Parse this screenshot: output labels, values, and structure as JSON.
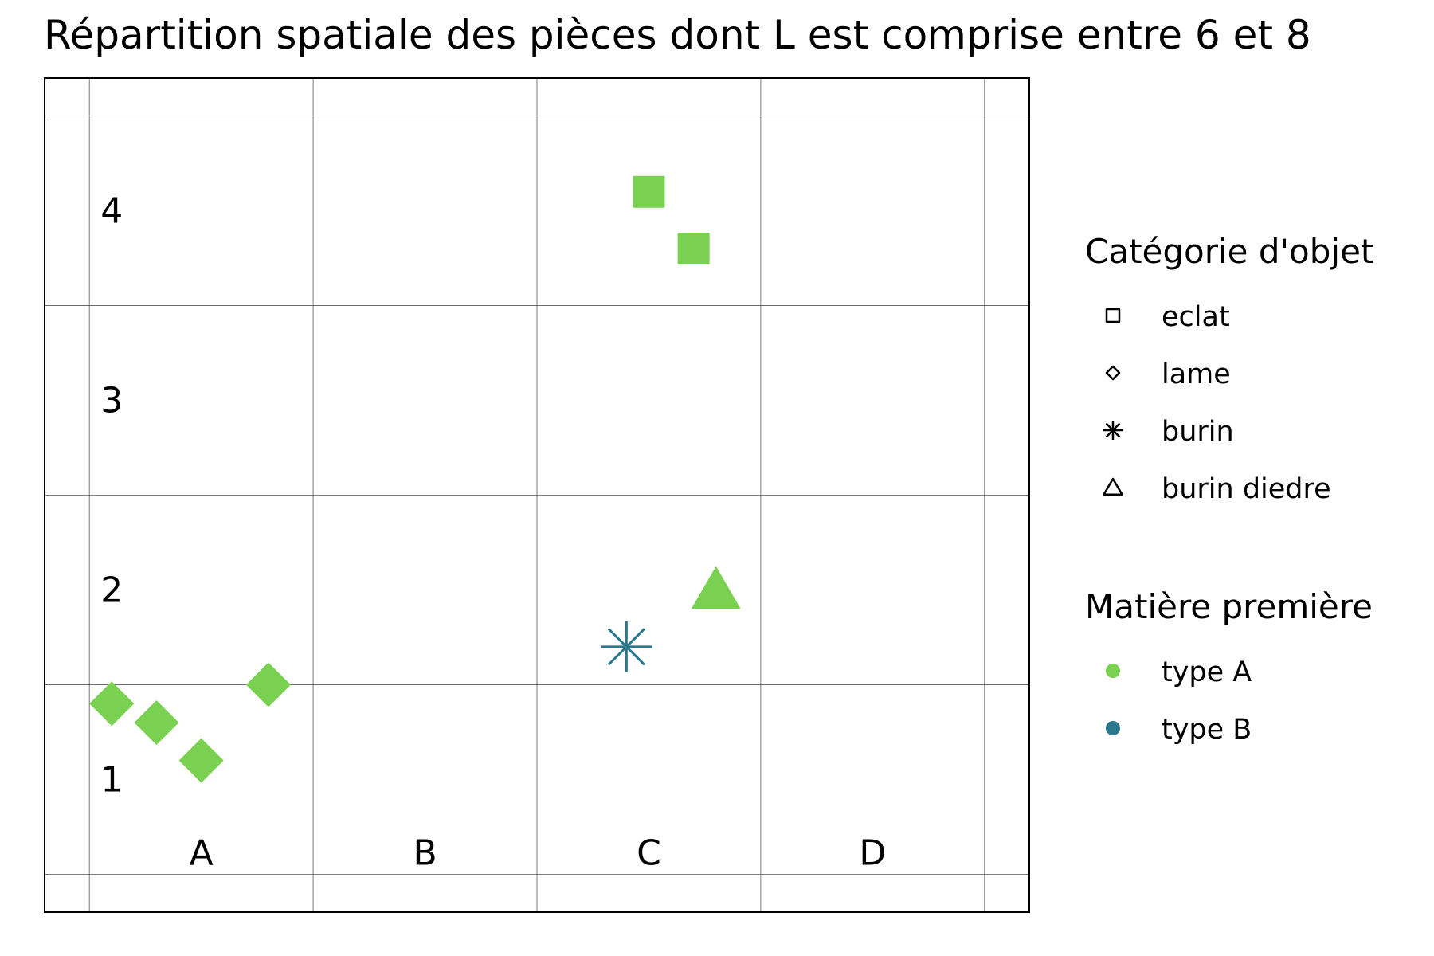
{
  "chart_data": {
    "type": "scatter",
    "title": "Répartition spatiale des pièces dont L est comprise entre 6 et 8",
    "xlabel": "",
    "ylabel": "",
    "x_grid_labels": [
      "A",
      "B",
      "C",
      "D"
    ],
    "y_grid_labels": [
      "1",
      "2",
      "3",
      "4"
    ],
    "xlim": [
      -0.2,
      4.2
    ],
    "ylim": [
      -0.2,
      4.2
    ],
    "grid": true,
    "legend_position": "right",
    "legend": {
      "shape_title": "Catégorie d'objet",
      "shapes": [
        {
          "label": "eclat",
          "marker": "square"
        },
        {
          "label": "lame",
          "marker": "diamond"
        },
        {
          "label": "burin",
          "marker": "asterisk"
        },
        {
          "label": "burin diedre",
          "marker": "triangle"
        }
      ],
      "color_title": "Matière première",
      "colors": [
        {
          "label": "type A",
          "color": "#7AD151"
        },
        {
          "label": "type B",
          "color": "#2A788E"
        }
      ]
    },
    "points": [
      {
        "x": 0.1,
        "y": 0.9,
        "category": "lame",
        "material": "type A"
      },
      {
        "x": 0.3,
        "y": 0.8,
        "category": "lame",
        "material": "type A"
      },
      {
        "x": 0.5,
        "y": 0.6,
        "category": "lame",
        "material": "type A"
      },
      {
        "x": 0.8,
        "y": 1.0,
        "category": "lame",
        "material": "type A"
      },
      {
        "x": 2.5,
        "y": 3.6,
        "category": "eclat",
        "material": "type A"
      },
      {
        "x": 2.7,
        "y": 3.3,
        "category": "eclat",
        "material": "type A"
      },
      {
        "x": 2.8,
        "y": 1.5,
        "category": "burin diedre",
        "material": "type A"
      },
      {
        "x": 2.4,
        "y": 1.2,
        "category": "burin",
        "material": "type B"
      }
    ]
  }
}
